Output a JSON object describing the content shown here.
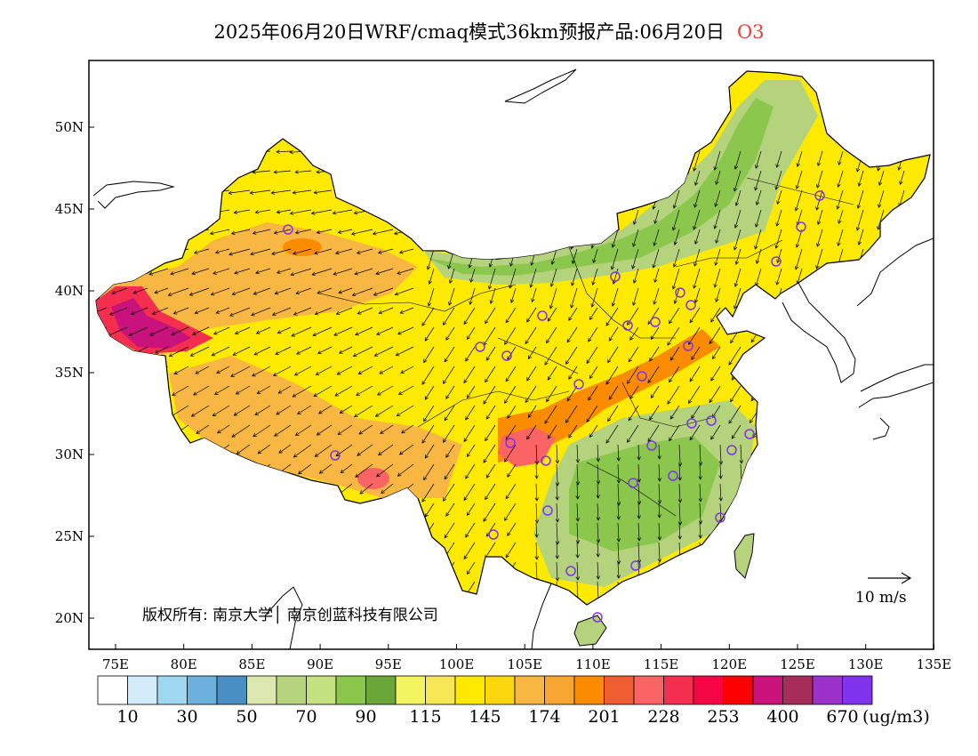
{
  "title": {
    "main": "2025年06月20日WRF/cmaq模式36km预报产品:06月20日",
    "pollutant": "O3"
  },
  "axes": {
    "lat_labels": [
      "20N",
      "25N",
      "30N",
      "35N",
      "40N",
      "45N",
      "50N"
    ],
    "lon_labels": [
      "75E",
      "80E",
      "85E",
      "90E",
      "95E",
      "100E",
      "105E",
      "110E",
      "115E",
      "120E",
      "125E",
      "130E",
      "135E"
    ]
  },
  "copyright": "版权所有: 南京大学│ 南京创蓝科技有限公司",
  "wind_reference": {
    "label": "10 m/s"
  },
  "legend": {
    "colors": [
      "#ffffff",
      "#d2ecf9",
      "#a0d8f2",
      "#6cb0de",
      "#4a8fc4",
      "#dce8b0",
      "#b5d37c",
      "#c3e181",
      "#8ac74c",
      "#6aa638",
      "#f2f55f",
      "#f7e655",
      "#fdea00",
      "#fcd60e",
      "#f8b642",
      "#f8a632",
      "#fb8c00",
      "#ef5e32",
      "#fa6464",
      "#f32e4e",
      "#f60545",
      "#fe0002",
      "#c9127b",
      "#a62d58",
      "#9a31c8",
      "#8033ec"
    ],
    "labels": [
      "10",
      "30",
      "50",
      "70",
      "90",
      "115",
      "145",
      "174",
      "201",
      "228",
      "253",
      "400",
      "670"
    ],
    "unit": "(ug/m3)"
  },
  "map_features": {
    "colors": {
      "clean_green": "#8ac74c",
      "light_green": "#b5d37c",
      "yellow": "#fdea00",
      "orange": "#f8b642",
      "dark_orange": "#fb8c00",
      "red": "#fa6464",
      "magenta": "#c9127b",
      "station_marker": "#8033ec"
    }
  }
}
